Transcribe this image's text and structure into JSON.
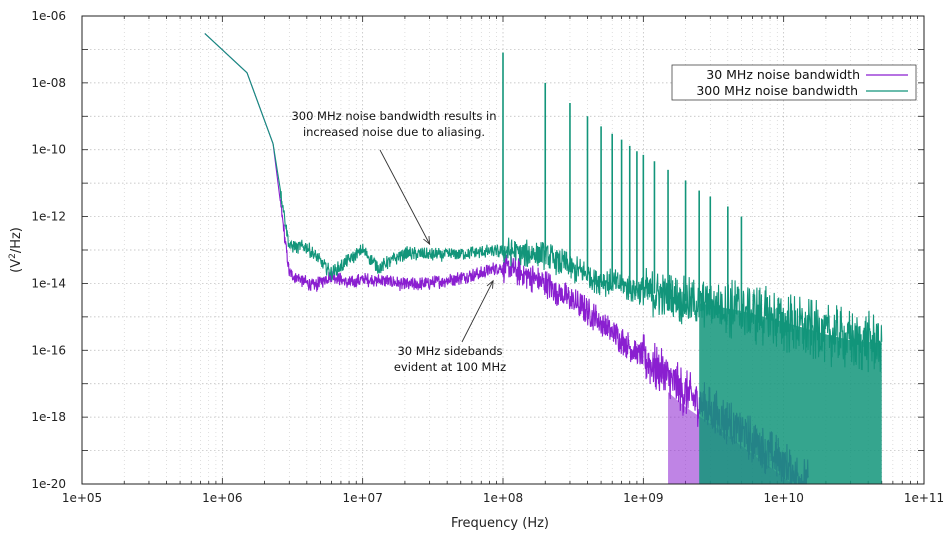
{
  "chart_data": {
    "type": "line",
    "title": "",
    "xlabel": "Frequency (Hz)",
    "ylabel": "(V²/Hz)",
    "ylabel_base": "(V",
    "ylabel_sup": "2",
    "ylabel_rest": "/Hz)",
    "xscale": "log",
    "yscale": "log",
    "xlim": [
      100000,
      100000000000
    ],
    "ylim": [
      1e-20,
      1e-06
    ],
    "x_ticks": [
      {
        "value": 100000,
        "label": "1e+05"
      },
      {
        "value": 1000000,
        "label": "1e+06"
      },
      {
        "value": 10000000,
        "label": "1e+07"
      },
      {
        "value": 100000000,
        "label": "1e+08"
      },
      {
        "value": 1000000000,
        "label": "1e+09"
      },
      {
        "value": 10000000000,
        "label": "1e+10"
      },
      {
        "value": 100000000000,
        "label": "1e+11"
      }
    ],
    "y_ticks": [
      {
        "value": 1e-20,
        "label": "1e-20"
      },
      {
        "value": 1e-18,
        "label": "1e-18"
      },
      {
        "value": 1e-16,
        "label": "1e-16"
      },
      {
        "value": 1e-14,
        "label": "1e-14"
      },
      {
        "value": 1e-12,
        "label": "1e-12"
      },
      {
        "value": 1e-10,
        "label": "1e-10"
      },
      {
        "value": 1e-08,
        "label": "1e-08"
      },
      {
        "value": 1e-06,
        "label": "1e-06"
      }
    ],
    "grid": true,
    "legend_position": "top-right",
    "series": [
      {
        "name": "30 MHz noise bandwidth",
        "color": "#8a1fd0",
        "points": [
          [
            750000,
            3e-07
          ],
          [
            1500000,
            2e-08
          ],
          [
            2300000,
            1.5e-10
          ],
          [
            3000000,
            2e-14
          ],
          [
            4500000,
            8e-15
          ],
          [
            6000000,
            1.8e-14
          ],
          [
            8000000,
            1e-14
          ],
          [
            10000000,
            1.3e-14
          ],
          [
            15000000,
            1.2e-14
          ],
          [
            20000000,
            9e-15
          ],
          [
            30000000,
            1e-14
          ],
          [
            50000000,
            1.5e-14
          ],
          [
            70000000,
            2e-14
          ],
          [
            90000000,
            3e-14
          ],
          [
            120000000,
            2.5e-14
          ],
          [
            200000000,
            1e-14
          ],
          [
            400000000,
            1.5e-15
          ],
          [
            700000000,
            2e-16
          ],
          [
            1000000000,
            6e-17
          ],
          [
            2000000000,
            5e-18
          ],
          [
            4000000000,
            7e-19
          ],
          [
            7000000000,
            1.2e-19
          ],
          [
            10000000000,
            4e-20
          ],
          [
            15000000000,
            1e-20
          ]
        ],
        "spikes": []
      },
      {
        "name": "300 MHz noise bandwidth",
        "color": "#12957a",
        "points": [
          [
            750000,
            3e-07
          ],
          [
            1500000,
            2e-08
          ],
          [
            2300000,
            1.5e-10
          ],
          [
            3000000,
            1.3e-13
          ],
          [
            4000000,
            1.2e-13
          ],
          [
            6000000,
            2e-14
          ],
          [
            8000000,
            5e-14
          ],
          [
            10000000,
            1e-13
          ],
          [
            13000000,
            3e-14
          ],
          [
            20000000,
            8e-14
          ],
          [
            30000000,
            7e-14
          ],
          [
            50000000,
            8e-14
          ],
          [
            80000000,
            9e-14
          ],
          [
            110000000,
            9e-14
          ],
          [
            200000000,
            7e-14
          ],
          [
            300000000,
            3e-14
          ],
          [
            500000000,
            1.2e-14
          ],
          [
            1000000000,
            6e-15
          ],
          [
            2000000000,
            3e-15
          ],
          [
            5000000000,
            1.5e-15
          ],
          [
            10000000000,
            7e-16
          ],
          [
            20000000000,
            3e-16
          ],
          [
            30000000000,
            2e-16
          ],
          [
            50000000000,
            1.6e-16
          ]
        ],
        "spikes": [
          {
            "x": 100000000,
            "y": 8e-08
          },
          {
            "x": 200000000,
            "y": 1e-08
          },
          {
            "x": 300000000,
            "y": 2.5e-09
          },
          {
            "x": 400000000,
            "y": 1e-09
          },
          {
            "x": 500000000,
            "y": 5e-10
          },
          {
            "x": 600000000,
            "y": 3e-10
          },
          {
            "x": 700000000,
            "y": 2e-10
          },
          {
            "x": 800000000,
            "y": 1.3e-10
          },
          {
            "x": 900000000,
            "y": 9e-11
          },
          {
            "x": 1000000000,
            "y": 7e-11
          },
          {
            "x": 1200000000,
            "y": 4.5e-11
          },
          {
            "x": 1500000000,
            "y": 2.5e-11
          },
          {
            "x": 2000000000,
            "y": 1.2e-11
          },
          {
            "x": 2500000000,
            "y": 6e-12
          },
          {
            "x": 3000000000,
            "y": 4e-12
          },
          {
            "x": 4000000000,
            "y": 2e-12
          },
          {
            "x": 5000000000,
            "y": 1e-12
          }
        ]
      }
    ],
    "annotations": [
      {
        "lines": [
          "300 MHz noise bandwidth results in",
          "increased noise due to aliasing."
        ],
        "arrow_to": [
          30000000,
          1.5e-13
        ]
      },
      {
        "lines": [
          "30 MHz sidebands",
          "evident at 100 MHz"
        ],
        "arrow_to": [
          85000000,
          1.2e-14
        ]
      }
    ]
  }
}
